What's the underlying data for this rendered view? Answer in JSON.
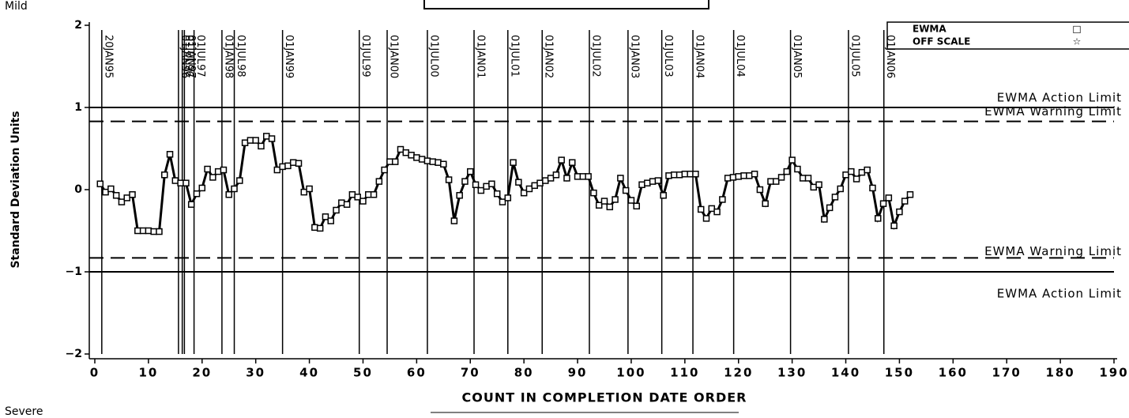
{
  "chart_data": {
    "type": "line",
    "top_label": "Mild",
    "bottom_label": "Severe",
    "y_label": "Standard Deviation Units",
    "x_label": "COUNT IN COMPLETION DATE ORDER",
    "xlim": [
      0,
      190
    ],
    "ylim": [
      -2,
      2
    ],
    "xticks": [
      0,
      10,
      20,
      30,
      40,
      50,
      60,
      70,
      80,
      90,
      100,
      110,
      120,
      130,
      140,
      150,
      160,
      170,
      180,
      190
    ],
    "yticks": [
      {
        "value": -2,
        "label": "−2"
      },
      {
        "value": -1,
        "label": "−1"
      },
      0,
      1,
      2
    ],
    "legend": "top-right",
    "legend_entries": [
      {
        "name": "EWMA",
        "symbol": "□"
      },
      {
        "name": "OFF SCALE",
        "symbol": "☆"
      }
    ],
    "limits": [
      {
        "label": "EWMA Action Limit",
        "value": 1,
        "style": "solid"
      },
      {
        "label": "EWMA Warning Limit",
        "value": 0.83,
        "style": "dashed"
      },
      {
        "label": "EWMA Warning Limit",
        "value": -0.83,
        "style": "dashed"
      },
      {
        "label": "EWMA Action Limit",
        "value": -1,
        "style": "solid"
      }
    ],
    "reference_lines": [
      {
        "x": 1.3,
        "label": "20JAN95"
      },
      {
        "x": 15.6,
        "label": "01JAN96"
      },
      {
        "x": 16.3,
        "label": "01JUL96"
      },
      {
        "x": 16.7,
        "label": "01JAN97"
      },
      {
        "x": 18.5,
        "label": "01JUL97"
      },
      {
        "x": 23.7,
        "label": "01JAN98"
      },
      {
        "x": 26,
        "label": "01JUL98"
      },
      {
        "x": 35,
        "label": "01JAN99"
      },
      {
        "x": 49.3,
        "label": "01JUL99"
      },
      {
        "x": 54.5,
        "label": "01JAN00"
      },
      {
        "x": 62,
        "label": "01JUL00"
      },
      {
        "x": 70.7,
        "label": "01JAN01"
      },
      {
        "x": 77,
        "label": "01JUL01"
      },
      {
        "x": 83.4,
        "label": "01JAN02"
      },
      {
        "x": 92.2,
        "label": "01JUL02"
      },
      {
        "x": 99.4,
        "label": "01JAN03"
      },
      {
        "x": 105.7,
        "label": "01JUL03"
      },
      {
        "x": 111.5,
        "label": "01JAN04"
      },
      {
        "x": 119.1,
        "label": "01JUL04"
      },
      {
        "x": 129.7,
        "label": "01JAN05"
      },
      {
        "x": 140.5,
        "label": "01JUL05"
      },
      {
        "x": 147.1,
        "label": "01JAN06"
      }
    ],
    "series": [
      {
        "name": "EWMA",
        "color": "#000000",
        "x": [
          1,
          2,
          3,
          4,
          5,
          6,
          7,
          8,
          9,
          10,
          11,
          12,
          13,
          14,
          15,
          16,
          17,
          18,
          19,
          20,
          21,
          22,
          23,
          24,
          25,
          26,
          27,
          28,
          29,
          30,
          31,
          32,
          33,
          34,
          35,
          36,
          37,
          38,
          39,
          40,
          41,
          42,
          43,
          44,
          45,
          46,
          47,
          48,
          49,
          50,
          51,
          52,
          53,
          54,
          55,
          56,
          57,
          58,
          59,
          60,
          61,
          62,
          63,
          64,
          65,
          66,
          67,
          68,
          69,
          70,
          71,
          72,
          73,
          74,
          75,
          76,
          77,
          78,
          79,
          80,
          81,
          82,
          83,
          84,
          85,
          86,
          87,
          88,
          89,
          90,
          91,
          92,
          93,
          94,
          95,
          96,
          97,
          98,
          99,
          100,
          101,
          102,
          103,
          104,
          105,
          106,
          107,
          108,
          109,
          110,
          111,
          112,
          113,
          114,
          115,
          116,
          117,
          118,
          119,
          120,
          121,
          122,
          123,
          124,
          125,
          126,
          127,
          128,
          129,
          130,
          131,
          132,
          133,
          134,
          135,
          136,
          137,
          138,
          139,
          140,
          141,
          142,
          143,
          144,
          145,
          146,
          147,
          148,
          149,
          150,
          151,
          152
        ],
        "values": [
          0.07,
          -0.03,
          0.01,
          -0.07,
          -0.15,
          -0.1,
          -0.06,
          -0.5,
          -0.5,
          -0.5,
          -0.51,
          -0.51,
          0.18,
          0.43,
          0.11,
          0.08,
          0.08,
          -0.18,
          -0.05,
          0.02,
          0.25,
          0.15,
          0.22,
          0.24,
          -0.06,
          0.01,
          0.11,
          0.57,
          0.6,
          0.6,
          0.53,
          0.65,
          0.62,
          0.24,
          0.28,
          0.29,
          0.33,
          0.32,
          -0.03,
          0.01,
          -0.46,
          -0.47,
          -0.33,
          -0.38,
          -0.25,
          -0.16,
          -0.18,
          -0.06,
          -0.09,
          -0.14,
          -0.06,
          -0.06,
          0.1,
          0.24,
          0.34,
          0.34,
          0.49,
          0.45,
          0.42,
          0.39,
          0.37,
          0.35,
          0.34,
          0.33,
          0.31,
          0.12,
          -0.38,
          -0.07,
          0.1,
          0.22,
          0.06,
          -0.01,
          0.04,
          0.07,
          -0.05,
          -0.15,
          -0.1,
          0.33,
          0.09,
          -0.04,
          0.01,
          0.05,
          0.08,
          0.11,
          0.14,
          0.18,
          0.36,
          0.14,
          0.33,
          0.16,
          0.16,
          0.16,
          -0.04,
          -0.19,
          -0.14,
          -0.21,
          -0.12,
          0.14,
          -0.01,
          -0.13,
          -0.2,
          0.06,
          0.08,
          0.1,
          0.11,
          -0.07,
          0.17,
          0.18,
          0.18,
          0.19,
          0.19,
          0.19,
          -0.24,
          -0.35,
          -0.23,
          -0.27,
          -0.12,
          0.14,
          0.15,
          0.16,
          0.17,
          0.17,
          0.19,
          0.0,
          -0.17,
          0.1,
          0.1,
          0.15,
          0.22,
          0.36,
          0.25,
          0.14,
          0.14,
          0.03,
          0.06,
          -0.36,
          -0.22,
          -0.09,
          0.01,
          0.18,
          0.22,
          0.13,
          0.21,
          0.24,
          0.02,
          -0.35,
          -0.17,
          -0.1,
          -0.44,
          -0.27,
          -0.14,
          -0.06
        ]
      }
    ]
  }
}
